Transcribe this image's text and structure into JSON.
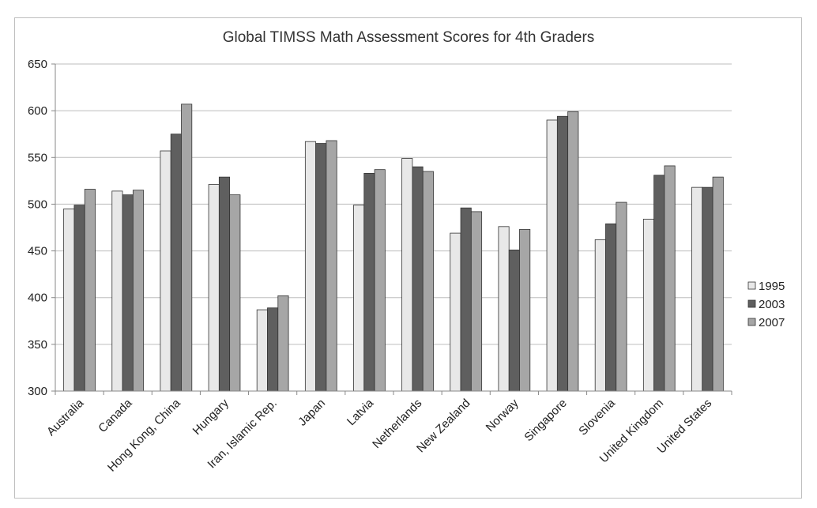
{
  "chart_data": {
    "type": "bar",
    "title": "Global TIMSS  Math Assessment Scores for 4th Graders",
    "xlabel": "",
    "ylabel": "",
    "ylim": [
      300,
      650
    ],
    "yticks": [
      "300",
      "350",
      "400",
      "450",
      "500",
      "550",
      "600",
      "650"
    ],
    "grid": true,
    "legend_position": "right",
    "categories": [
      "Australia",
      "Canada",
      "Hong Kong, China",
      "Hungary",
      "Iran, Islamic Rep.",
      "Japan",
      "Latvia",
      "Netherlands",
      "New Zealand",
      "Norway",
      "Singapore",
      "Slovenia",
      "United Kingdom",
      "United States"
    ],
    "series": [
      {
        "name": "1995",
        "color": "#e8e8e8",
        "values": [
          495,
          514,
          557,
          521,
          387,
          567,
          499,
          549,
          469,
          476,
          590,
          462,
          484,
          518
        ]
      },
      {
        "name": "2003",
        "color": "#5f5f5f",
        "values": [
          499,
          510,
          575,
          529,
          389,
          565,
          533,
          540,
          496,
          451,
          594,
          479,
          531,
          518
        ]
      },
      {
        "name": "2007",
        "color": "#a6a6a6",
        "values": [
          516,
          515,
          607,
          510,
          402,
          568,
          537,
          535,
          492,
          473,
          599,
          502,
          541,
          529
        ]
      }
    ]
  }
}
